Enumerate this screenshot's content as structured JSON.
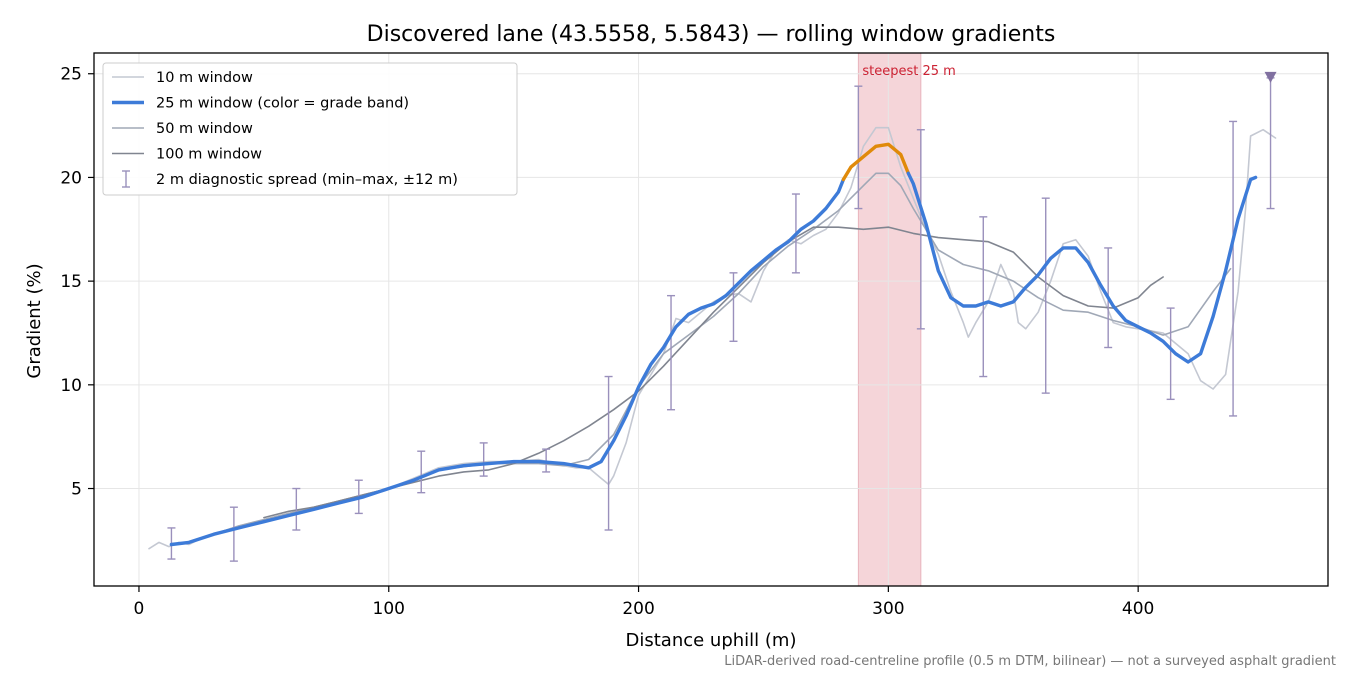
{
  "chart_data": {
    "type": "line",
    "title": "Discovered lane (43.5558, 5.5843) — rolling window gradients",
    "xlabel": "Distance uphill (m)",
    "ylabel": "Gradient (%)",
    "xlim": [
      -18,
      476
    ],
    "ylim": [
      0.3,
      26
    ],
    "xticks": [
      0,
      100,
      200,
      300,
      400
    ],
    "yticks": [
      5,
      10,
      15,
      20,
      25
    ],
    "grid": true,
    "legend_position": "top-left",
    "footnote": "LiDAR-derived road-centreline profile (0.5 m DTM, bilinear) — not a surveyed asphalt gradient",
    "highlight": {
      "x0": 288,
      "x1": 313,
      "label": "steepest 25 m",
      "color": "#f5d5d9"
    },
    "marker": {
      "x": 453,
      "y": 24.8,
      "shape": "triangle-down",
      "color": "#8070a0"
    },
    "colors": {
      "w10": "#c4c8d2",
      "w25": "#3d7bd8",
      "w25_steep": "#e08a0a",
      "w50": "#a0a8b6",
      "w100": "#808590",
      "errorbar": "#9a90bc",
      "annotation": "#cc2233"
    },
    "series": [
      {
        "name": "10 m window",
        "key": "w10",
        "x": [
          4,
          8,
          12,
          16,
          20,
          25,
          30,
          40,
          50,
          60,
          70,
          80,
          90,
          100,
          110,
          120,
          130,
          140,
          150,
          160,
          170,
          175,
          180,
          185,
          188,
          190,
          195,
          200,
          205,
          210,
          215,
          220,
          225,
          230,
          235,
          240,
          245,
          250,
          255,
          260,
          265,
          270,
          275,
          280,
          285,
          290,
          295,
          300,
          305,
          310,
          315,
          320,
          325,
          330,
          332,
          335,
          340,
          345,
          350,
          352,
          355,
          360,
          365,
          370,
          375,
          380,
          385,
          390,
          395,
          400,
          410,
          420,
          425,
          430,
          435,
          440,
          443,
          445,
          450,
          455
        ],
        "y": [
          2.1,
          2.4,
          2.2,
          2.4,
          2.3,
          2.6,
          2.8,
          3.2,
          3.5,
          3.8,
          4.0,
          4.3,
          4.7,
          5.0,
          5.5,
          6.0,
          6.2,
          6.3,
          6.3,
          6.4,
          6.1,
          6.0,
          6.0,
          5.5,
          5.2,
          5.6,
          7.2,
          9.5,
          10.5,
          11.5,
          13.2,
          13.0,
          13.5,
          14.0,
          14.3,
          14.4,
          14.0,
          15.5,
          16.5,
          17.0,
          16.8,
          17.2,
          17.5,
          18.3,
          19.5,
          21.5,
          22.4,
          22.4,
          20.5,
          19.0,
          17.5,
          16.3,
          14.5,
          13.0,
          12.3,
          13.0,
          14.0,
          15.8,
          14.5,
          13.0,
          12.7,
          13.5,
          15.0,
          16.8,
          17.0,
          16.2,
          14.5,
          13.0,
          12.8,
          12.7,
          12.5,
          11.5,
          10.2,
          9.8,
          10.5,
          14.5,
          18.5,
          22.0,
          22.3,
          21.9
        ]
      },
      {
        "name": "25 m window (color = grade band)",
        "key": "w25",
        "x": [
          13,
          20,
          30,
          40,
          50,
          60,
          70,
          80,
          90,
          100,
          110,
          120,
          130,
          140,
          150,
          160,
          170,
          175,
          180,
          185,
          190,
          195,
          200,
          205,
          210,
          215,
          220,
          225,
          230,
          235,
          240,
          245,
          250,
          255,
          260,
          265,
          270,
          275,
          280,
          282,
          285,
          290,
          295,
          300,
          305,
          308,
          310,
          315,
          320,
          325,
          330,
          335,
          340,
          345,
          350,
          355,
          360,
          365,
          370,
          375,
          380,
          385,
          390,
          395,
          400,
          405,
          410,
          415,
          420,
          425,
          430,
          435,
          440,
          445,
          447
        ],
        "y": [
          2.3,
          2.4,
          2.8,
          3.1,
          3.4,
          3.7,
          4.0,
          4.3,
          4.6,
          5.0,
          5.4,
          5.9,
          6.1,
          6.2,
          6.3,
          6.3,
          6.2,
          6.1,
          6.0,
          6.3,
          7.3,
          8.5,
          9.9,
          11.0,
          11.8,
          12.8,
          13.4,
          13.7,
          13.9,
          14.3,
          14.9,
          15.5,
          16.0,
          16.5,
          16.9,
          17.5,
          17.9,
          18.5,
          19.3,
          19.9,
          20.5,
          21.0,
          21.5,
          21.6,
          21.1,
          20.2,
          19.7,
          17.8,
          15.5,
          14.2,
          13.8,
          13.8,
          14.0,
          13.8,
          14.0,
          14.7,
          15.3,
          16.1,
          16.6,
          16.6,
          15.9,
          14.8,
          13.8,
          13.1,
          12.8,
          12.5,
          12.1,
          11.5,
          11.1,
          11.5,
          13.3,
          15.5,
          18.0,
          19.9,
          20.0
        ]
      },
      {
        "name": "50 m window",
        "key": "w50",
        "x": [
          25,
          40,
          60,
          80,
          100,
          120,
          140,
          160,
          170,
          180,
          190,
          200,
          210,
          220,
          230,
          240,
          250,
          260,
          270,
          280,
          290,
          295,
          300,
          305,
          310,
          320,
          330,
          340,
          350,
          360,
          370,
          380,
          390,
          400,
          410,
          420,
          430,
          437
        ],
        "y": [
          2.6,
          3.2,
          3.8,
          4.4,
          5.0,
          5.9,
          6.2,
          6.2,
          6.1,
          6.4,
          7.6,
          9.9,
          11.5,
          12.4,
          13.3,
          14.4,
          15.7,
          16.7,
          17.5,
          18.4,
          19.6,
          20.2,
          20.2,
          19.6,
          18.5,
          16.5,
          15.8,
          15.5,
          15.0,
          14.2,
          13.6,
          13.5,
          13.1,
          12.8,
          12.4,
          12.8,
          14.5,
          15.6
        ]
      },
      {
        "name": "100 m window",
        "key": "w100",
        "x": [
          50,
          60,
          70,
          80,
          90,
          100,
          110,
          120,
          130,
          140,
          150,
          160,
          170,
          180,
          190,
          200,
          210,
          220,
          230,
          240,
          250,
          260,
          270,
          280,
          290,
          300,
          310,
          320,
          330,
          340,
          350,
          360,
          370,
          380,
          390,
          400,
          405,
          410
        ],
        "y": [
          3.6,
          3.9,
          4.1,
          4.4,
          4.7,
          5.0,
          5.3,
          5.6,
          5.8,
          5.9,
          6.2,
          6.7,
          7.3,
          8.0,
          8.8,
          9.7,
          10.9,
          12.2,
          13.5,
          14.7,
          15.9,
          16.9,
          17.6,
          17.6,
          17.5,
          17.6,
          17.3,
          17.1,
          17.0,
          16.9,
          16.4,
          15.2,
          14.3,
          13.8,
          13.7,
          14.2,
          14.8,
          15.2
        ]
      }
    ],
    "errorbars": {
      "name": "2 m diagnostic spread (min–max, ±12 m)",
      "key": "errorbar",
      "x": [
        13,
        38,
        63,
        88,
        113,
        138,
        163,
        188,
        213,
        238,
        263,
        288,
        313,
        338,
        363,
        388,
        413,
        438,
        453
      ],
      "ymin": [
        1.6,
        1.5,
        3.0,
        3.8,
        4.8,
        5.6,
        5.8,
        3.0,
        8.8,
        12.1,
        15.4,
        18.5,
        12.7,
        10.4,
        9.6,
        11.8,
        9.3,
        8.5,
        18.5
      ],
      "ymax": [
        3.1,
        4.1,
        5.0,
        5.4,
        6.8,
        7.2,
        6.9,
        10.4,
        14.3,
        15.4,
        19.2,
        24.4,
        22.3,
        18.1,
        19.0,
        16.6,
        13.7,
        22.7,
        24.8
      ]
    }
  }
}
